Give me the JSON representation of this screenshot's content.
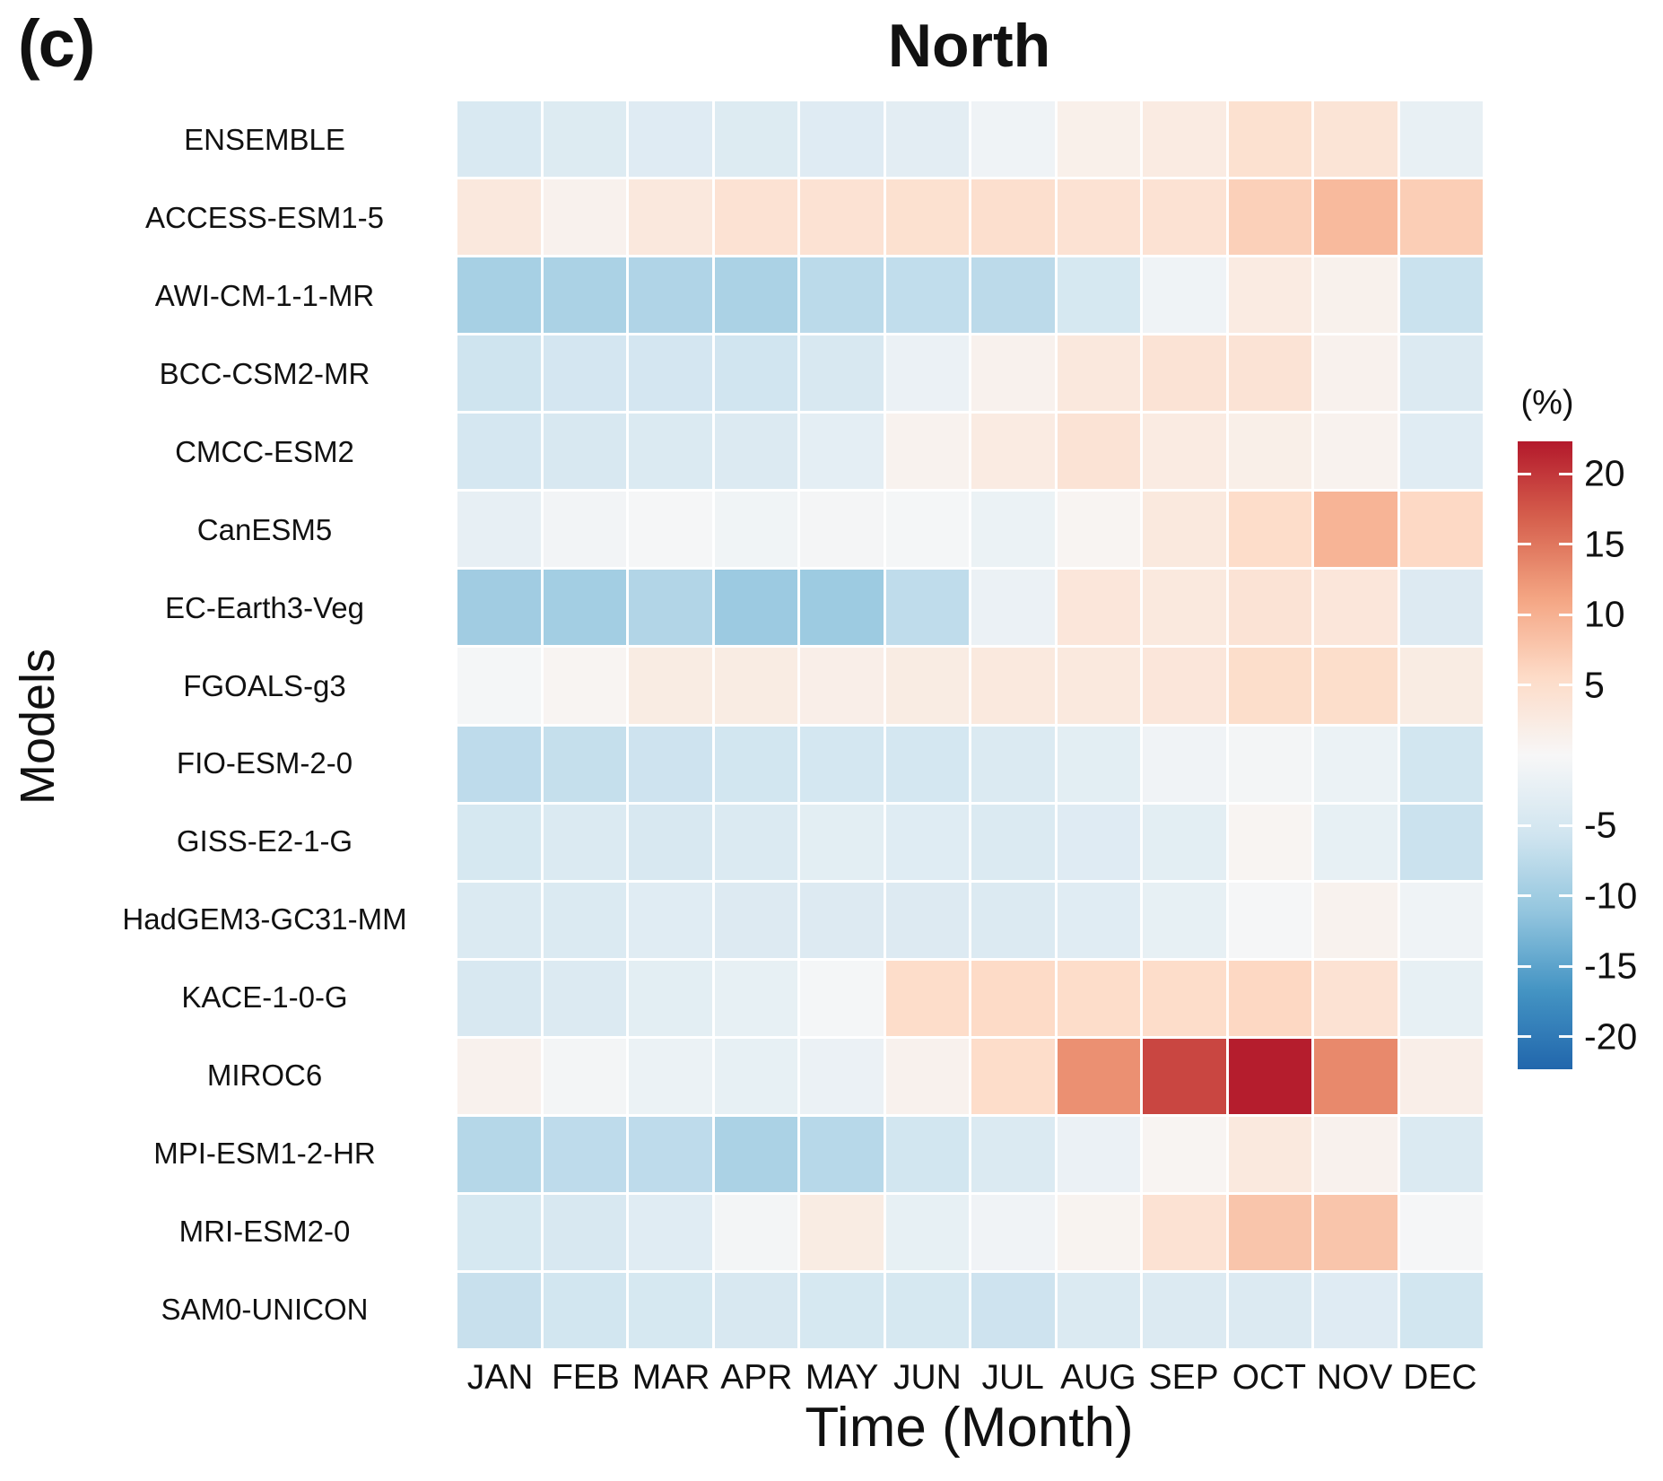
{
  "panel_label": "(c)",
  "title": "North",
  "axes": {
    "y_label": "Models",
    "x_label": "Time (Month)"
  },
  "colorbar": {
    "label": "(%)",
    "ticks": [
      20,
      15,
      10,
      5,
      -5,
      -10,
      -15,
      -20
    ],
    "top_value": 22.3,
    "bottom_value": -22.3
  },
  "chart_data": {
    "type": "heatmap",
    "title": "North",
    "xlabel": "Time (Month)",
    "ylabel": "Models",
    "value_unit": "%",
    "x": [
      "JAN",
      "FEB",
      "MAR",
      "APR",
      "MAY",
      "JUN",
      "JUL",
      "AUG",
      "SEP",
      "OCT",
      "NOV",
      "DEC"
    ],
    "categories": [
      "ENSEMBLE",
      "ACCESS-ESM1-5",
      "AWI-CM-1-1-MR",
      "BCC-CSM2-MR",
      "CMCC-ESM2",
      "CanESM5",
      "EC-Earth3-Veg",
      "FGOALS-g3",
      "FIO-ESM-2-0",
      "GISS-E2-1-G",
      "HadGEM3-GC31-MM",
      "KACE-1-0-G",
      "MIROC6",
      "MPI-ESM1-2-HR",
      "MRI-ESM2-0",
      "SAM0-UNICON"
    ],
    "series": [
      {
        "name": "ENSEMBLE",
        "values": [
          -4.4,
          -3.8,
          -3.6,
          -3.8,
          -3.6,
          -3.0,
          -1.2,
          1.5,
          2.5,
          4.5,
          3.8,
          -2.2
        ]
      },
      {
        "name": "ACCESS-ESM1-5",
        "values": [
          3.0,
          1.2,
          3.0,
          4.2,
          4.2,
          4.5,
          4.8,
          4.2,
          4.2,
          6.7,
          9.0,
          7.0
        ]
      },
      {
        "name": "AWI-CM-1-1-MR",
        "values": [
          -9.3,
          -9.0,
          -8.5,
          -9.0,
          -7.6,
          -7.0,
          -7.5,
          -4.8,
          -1.2,
          2.4,
          1.3,
          -6.2
        ]
      },
      {
        "name": "BCC-CSM2-MR",
        "values": [
          -5.8,
          -5.2,
          -5.2,
          -5.6,
          -4.6,
          -1.8,
          1.2,
          3.0,
          4.0,
          4.0,
          1.2,
          -4.0
        ]
      },
      {
        "name": "CMCC-ESM2",
        "values": [
          -5.0,
          -4.6,
          -4.2,
          -4.0,
          -2.8,
          1.0,
          2.4,
          4.0,
          2.4,
          1.7,
          1.0,
          -3.4
        ]
      },
      {
        "name": "CanESM5",
        "values": [
          -2.4,
          -0.8,
          -0.3,
          -1.0,
          -0.5,
          -0.4,
          -1.7,
          0.6,
          2.9,
          5.3,
          9.6,
          5.8
        ]
      },
      {
        "name": "EC-Earth3-Veg",
        "values": [
          -9.9,
          -9.7,
          -8.4,
          -10.3,
          -10.2,
          -7.2,
          -1.8,
          3.4,
          2.9,
          4.0,
          3.4,
          -3.9
        ]
      },
      {
        "name": "FGOALS-g3",
        "values": [
          -0.4,
          0.6,
          2.3,
          2.3,
          1.8,
          2.3,
          2.9,
          2.9,
          3.4,
          5.1,
          5.1,
          2.3
        ]
      },
      {
        "name": "FIO-ESM-2-0",
        "values": [
          -7.3,
          -6.7,
          -5.9,
          -5.4,
          -5.1,
          -5.1,
          -4.2,
          -2.9,
          -1.1,
          -0.6,
          -1.7,
          -5.4
        ]
      },
      {
        "name": "GISS-E2-1-G",
        "values": [
          -4.8,
          -4.2,
          -4.6,
          -4.2,
          -2.9,
          -3.5,
          -4.1,
          -3.6,
          -2.9,
          0.6,
          -2.3,
          -6.1
        ]
      },
      {
        "name": "HadGEM3-GC31-MM",
        "values": [
          -4.2,
          -4.2,
          -3.4,
          -3.9,
          -3.9,
          -3.9,
          -4.0,
          -3.4,
          -2.3,
          -0.3,
          1.1,
          -1.2
        ]
      },
      {
        "name": "KACE-1-0-G",
        "values": [
          -4.6,
          -4.0,
          -2.9,
          -2.3,
          -0.4,
          5.3,
          5.6,
          5.3,
          5.3,
          5.9,
          4.2,
          -2.3
        ]
      },
      {
        "name": "MIROC6",
        "values": [
          1.2,
          -0.6,
          -1.7,
          -2.3,
          -1.8,
          1.2,
          5.3,
          12.9,
          18.8,
          22.0,
          13.5,
          1.8
        ]
      },
      {
        "name": "MPI-ESM1-2-HR",
        "values": [
          -8.1,
          -7.3,
          -7.3,
          -9.0,
          -7.9,
          -5.4,
          -4.2,
          -1.8,
          0.6,
          2.9,
          1.2,
          -4.2
        ]
      },
      {
        "name": "MRI-ESM2-0",
        "values": [
          -4.8,
          -4.6,
          -3.4,
          -0.6,
          2.3,
          -2.3,
          -1.1,
          0.8,
          4.2,
          7.9,
          7.9,
          -0.3
        ]
      },
      {
        "name": "SAM0-UNICON",
        "values": [
          -6.4,
          -5.4,
          -4.8,
          -4.6,
          -4.8,
          -4.8,
          -5.9,
          -4.2,
          -4.0,
          -4.0,
          -3.6,
          -5.4
        ]
      }
    ],
    "colormap": "RdBu_r",
    "color_range": [
      -28,
      28
    ],
    "colorbar_range": [
      -22.3,
      22.3
    ],
    "grid": "white gaps between cells",
    "legend_position": "right colorbar"
  }
}
